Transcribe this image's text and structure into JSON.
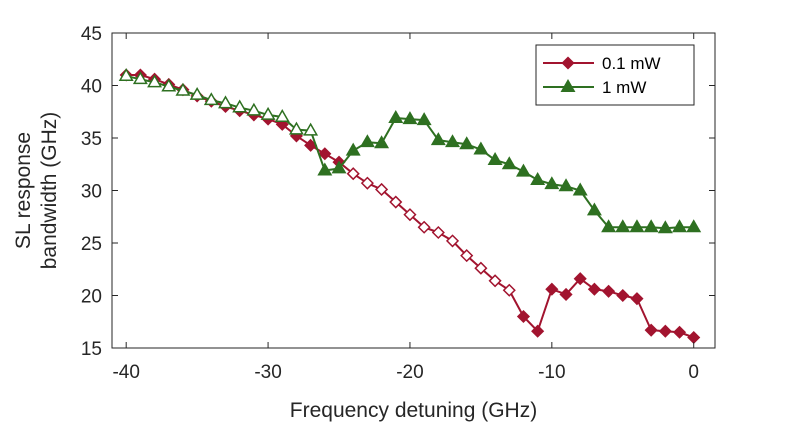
{
  "chart_data": {
    "type": "line",
    "title": "",
    "xlabel": "Frequency detuning (GHz)",
    "ylabel": [
      "SL response",
      "bandwidth (GHz)"
    ],
    "xlim": [
      -41,
      1.5
    ],
    "ylim": [
      15,
      45
    ],
    "xticks": [
      -40,
      -30,
      -20,
      -10,
      0
    ],
    "yticks": [
      15,
      20,
      25,
      30,
      35,
      40,
      45
    ],
    "grid": false,
    "legend_position": "top-right",
    "series": [
      {
        "name": "0.1 mW",
        "color": "#a2142f",
        "marker": "diamond",
        "x": [
          -40,
          -39,
          -38,
          -37,
          -36,
          -35,
          -34,
          -33,
          -32,
          -31,
          -30,
          -29,
          -28,
          -27,
          -26,
          -25,
          -24,
          -23,
          -22,
          -21,
          -20,
          -19,
          -18,
          -17,
          -16,
          -15,
          -14,
          -13,
          -12,
          -11,
          -10,
          -9,
          -8,
          -7,
          -6,
          -5,
          -4,
          -3,
          -2,
          -1,
          0
        ],
        "y": [
          41.0,
          41.0,
          40.6,
          40.1,
          39.6,
          39.0,
          38.5,
          38.0,
          37.6,
          37.2,
          36.8,
          36.3,
          35.2,
          34.3,
          33.5,
          32.7,
          31.6,
          30.7,
          30.1,
          28.9,
          27.7,
          26.5,
          26.0,
          25.2,
          23.8,
          22.6,
          21.4,
          20.5,
          18.0,
          16.6,
          20.6,
          20.1,
          21.6,
          20.6,
          20.4,
          20.0,
          19.7,
          16.7,
          16.6,
          16.5,
          16.0
        ],
        "filled": [
          true,
          true,
          true,
          true,
          true,
          true,
          true,
          true,
          true,
          true,
          true,
          true,
          true,
          true,
          true,
          true,
          false,
          false,
          false,
          false,
          false,
          false,
          false,
          false,
          false,
          false,
          false,
          false,
          true,
          true,
          true,
          true,
          true,
          true,
          true,
          true,
          true,
          true,
          true,
          true,
          true
        ]
      },
      {
        "name": "1 mW",
        "color": "#2e7021",
        "marker": "triangle",
        "x": [
          -40,
          -39,
          -38,
          -37,
          -36,
          -35,
          -34,
          -33,
          -32,
          -31,
          -30,
          -29,
          -28,
          -27,
          -26,
          -25,
          -24,
          -23,
          -22,
          -21,
          -20,
          -19,
          -18,
          -17,
          -16,
          -15,
          -14,
          -13,
          -12,
          -11,
          -10,
          -9,
          -8,
          -7,
          -6,
          -5,
          -4,
          -3,
          -2,
          -1,
          0
        ],
        "y": [
          40.9,
          40.6,
          40.3,
          39.9,
          39.5,
          39.1,
          38.6,
          38.3,
          37.9,
          37.6,
          37.2,
          37.0,
          35.8,
          35.7,
          31.9,
          32.1,
          33.8,
          34.6,
          34.5,
          36.9,
          36.8,
          36.7,
          34.8,
          34.6,
          34.4,
          33.9,
          32.9,
          32.5,
          31.8,
          31.0,
          30.6,
          30.4,
          30.0,
          28.1,
          26.5,
          26.5,
          26.5,
          26.5,
          26.4,
          26.5,
          26.5
        ],
        "filled": [
          false,
          false,
          false,
          false,
          false,
          false,
          false,
          false,
          false,
          false,
          false,
          false,
          false,
          false,
          true,
          true,
          true,
          true,
          true,
          true,
          true,
          true,
          true,
          true,
          true,
          true,
          true,
          true,
          true,
          true,
          true,
          true,
          true,
          true,
          true,
          true,
          true,
          true,
          true,
          true,
          true
        ]
      }
    ]
  }
}
